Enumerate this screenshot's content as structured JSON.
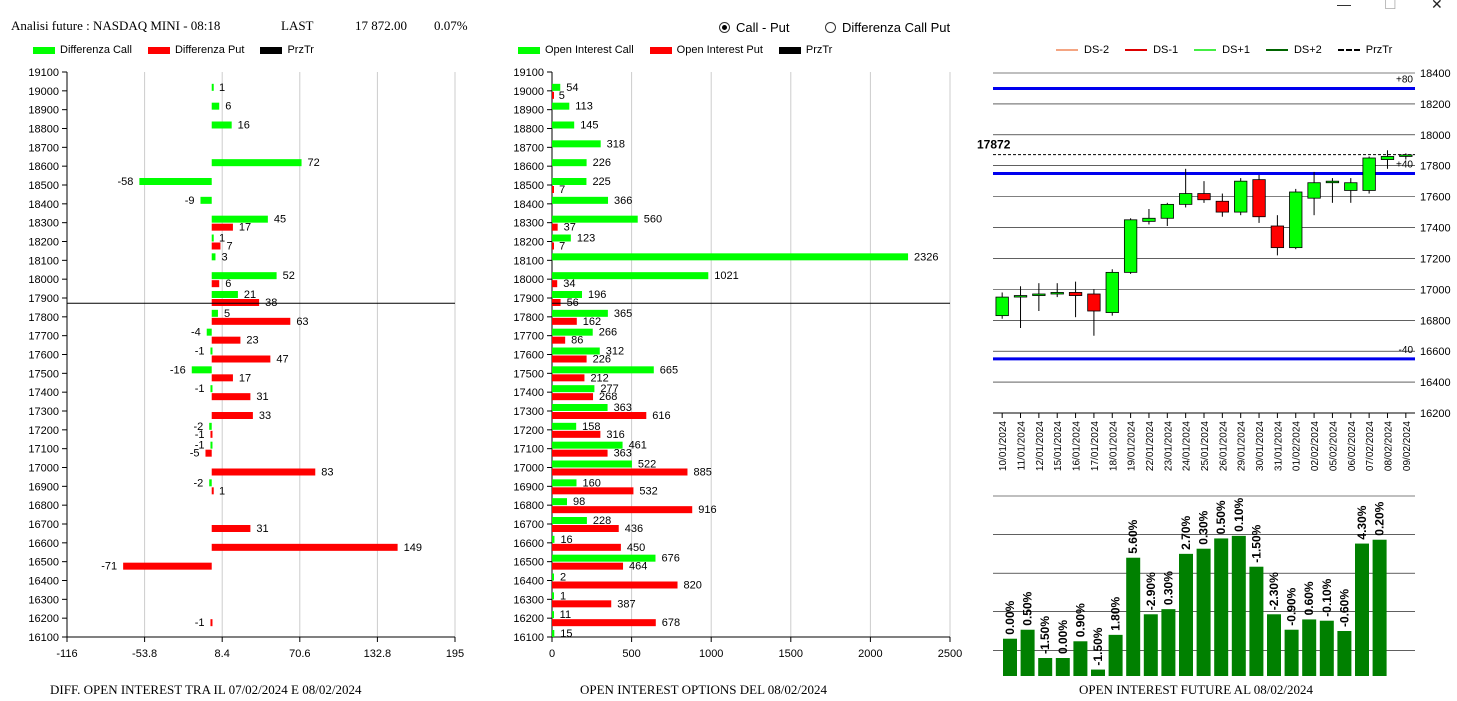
{
  "header": {
    "title": "Analisi future : NASDAQ MINI - 08:18",
    "last_label": "LAST",
    "last_value": "17 872.00",
    "change": "0.07%"
  },
  "radio": {
    "call_put": "Call - Put",
    "diff_call_put": "Differenza Call Put",
    "selected": "call_put"
  },
  "window_controls": [
    "—",
    "☐",
    "✕"
  ],
  "colors": {
    "green": "#00ff00",
    "red": "#ff0000",
    "black": "#000000",
    "blue": "#0000ee",
    "dark_green": "#008000"
  },
  "chart1": {
    "legend": [
      "Differenza Call",
      "Differenza Put",
      "PrzTr"
    ],
    "footer": "DIFF. OPEN INTEREST TRA IL 07/02/2024 E 08/02/2024"
  },
  "chart2": {
    "legend": [
      "Open Interest Call",
      "Open Interest Put",
      "PrzTr"
    ],
    "footer": "OPEN INTEREST OPTIONS DEL 08/02/2024"
  },
  "chart3": {
    "legend": [
      "DS-2",
      "DS-1",
      "DS+1",
      "DS+2",
      "PrzTr"
    ],
    "footer": "OPEN INTEREST FUTURE AL 08/02/2024"
  },
  "chart_data": [
    {
      "type": "bar",
      "orientation": "horizontal",
      "strikes": [
        19100,
        19000,
        18900,
        18800,
        18700,
        18600,
        18500,
        18400,
        18300,
        18200,
        18100,
        18000,
        17900,
        17800,
        17700,
        17600,
        17500,
        17400,
        17300,
        17200,
        17100,
        17000,
        16900,
        16800,
        16700,
        16600,
        16500,
        16400,
        16300,
        16200,
        16100
      ],
      "series": [
        {
          "name": "Differenza Call",
          "values": [
            null,
            1,
            6,
            16,
            null,
            72,
            -58,
            -9,
            45,
            1,
            3,
            52,
            21,
            5,
            -4,
            -1,
            -16,
            -1,
            null,
            -2,
            -1,
            null,
            -2,
            null,
            null,
            null,
            null,
            null,
            null,
            null,
            null
          ]
        },
        {
          "name": "Differenza Put",
          "values": [
            null,
            null,
            null,
            null,
            null,
            null,
            null,
            null,
            17,
            7,
            null,
            6,
            38,
            63,
            23,
            47,
            17,
            31,
            33,
            -1,
            -5,
            83,
            1,
            null,
            31,
            149,
            -71,
            null,
            null,
            -1,
            null
          ]
        }
      ],
      "price_line": 17872,
      "x_ticks": [
        "-116",
        "-53.8",
        "8.4",
        "70.6",
        "132.8",
        "195"
      ],
      "xlim": [
        -116,
        195
      ]
    },
    {
      "type": "bar",
      "orientation": "horizontal",
      "strikes": [
        19100,
        19000,
        18900,
        18800,
        18700,
        18600,
        18500,
        18400,
        18300,
        18200,
        18100,
        18000,
        17900,
        17800,
        17700,
        17600,
        17500,
        17400,
        17300,
        17200,
        17100,
        17000,
        16900,
        16800,
        16700,
        16600,
        16500,
        16400,
        16300,
        16200,
        16100
      ],
      "series": [
        {
          "name": "Open Interest Call",
          "values": [
            null,
            54,
            113,
            145,
            318,
            226,
            225,
            366,
            560,
            123,
            2326,
            1021,
            196,
            365,
            266,
            312,
            665,
            277,
            363,
            158,
            461,
            522,
            160,
            98,
            228,
            16,
            676,
            null,
            null,
            11,
            15
          ]
        },
        {
          "name": "Open Interest Put",
          "values": [
            null,
            5,
            null,
            null,
            null,
            null,
            7,
            null,
            37,
            7,
            null,
            34,
            56,
            162,
            86,
            226,
            212,
            268,
            616,
            316,
            363,
            885,
            532,
            916,
            436,
            450,
            464,
            820,
            387,
            678,
            null
          ]
        }
      ],
      "extra_labels": [
        {
          "strike": 16400,
          "series": "Open Interest Call",
          "text": "2"
        },
        {
          "strike": 16300,
          "series": "Open Interest Call",
          "text": "1"
        }
      ],
      "price_line": 17872,
      "x_ticks": [
        "0",
        "500",
        "1000",
        "1500",
        "2000",
        "2500"
      ],
      "xlim": [
        0,
        2600
      ]
    },
    {
      "type": "candlestick",
      "dates": [
        "10/01/2024",
        "11/01/2024",
        "12/01/2024",
        "15/01/2024",
        "16/01/2024",
        "17/01/2024",
        "18/01/2024",
        "19/01/2024",
        "22/01/2024",
        "23/01/2024",
        "24/01/2024",
        "25/01/2024",
        "26/01/2024",
        "29/01/2024",
        "30/01/2024",
        "31/01/2024",
        "01/02/2024",
        "02/02/2024",
        "05/02/2024",
        "06/02/2024",
        "07/02/2024",
        "08/02/2024",
        "09/02/2024"
      ],
      "ohlc": [
        [
          16830,
          16980,
          16810,
          16950
        ],
        [
          16960,
          17020,
          16750,
          16960
        ],
        [
          16960,
          17040,
          16860,
          16970
        ],
        [
          16970,
          17040,
          16950,
          16980
        ],
        [
          16980,
          17050,
          16820,
          16960
        ],
        [
          16970,
          17000,
          16700,
          16860
        ],
        [
          16850,
          17130,
          16830,
          17110
        ],
        [
          17110,
          17460,
          17100,
          17450
        ],
        [
          17440,
          17520,
          17420,
          17460
        ],
        [
          17460,
          17560,
          17410,
          17550
        ],
        [
          17550,
          17780,
          17530,
          17620
        ],
        [
          17620,
          17700,
          17560,
          17580
        ],
        [
          17570,
          17620,
          17470,
          17500
        ],
        [
          17500,
          17720,
          17480,
          17700
        ],
        [
          17710,
          17740,
          17430,
          17470
        ],
        [
          17410,
          17480,
          17220,
          17270
        ],
        [
          17270,
          17650,
          17260,
          17630
        ],
        [
          17590,
          17760,
          17480,
          17690
        ],
        [
          17690,
          17720,
          17560,
          17700
        ],
        [
          17640,
          17720,
          17560,
          17690
        ],
        [
          17640,
          17860,
          17620,
          17850
        ],
        [
          17840,
          17900,
          17780,
          17860
        ],
        [
          17860,
          17880,
          17840,
          17870
        ]
      ],
      "hlines": [
        {
          "value": 18300,
          "label": "+80",
          "color": "#0000ee"
        },
        {
          "value": 17750,
          "label": "+40",
          "color": "#0000ee"
        },
        {
          "value": 16550,
          "label": "-40",
          "color": "#0000ee"
        }
      ],
      "price_line": 17872,
      "price_label": "17872",
      "y_ticks": [
        "18400",
        "18200",
        "18000",
        "17800",
        "17600",
        "17400",
        "17200",
        "17000",
        "16800",
        "16600",
        "16400",
        "16200"
      ],
      "ylim": [
        16200,
        18400
      ]
    },
    {
      "type": "bar",
      "categories": [
        "10/01/2024",
        "11/01/2024",
        "12/01/2024",
        "15/01/2024",
        "16/01/2024",
        "17/01/2024",
        "18/01/2024",
        "19/01/2024",
        "22/01/2024",
        "23/01/2024",
        "24/01/2024",
        "25/01/2024",
        "26/01/2024",
        "29/01/2024",
        "30/01/2024",
        "31/01/2024",
        "01/02/2024",
        "02/02/2024",
        "05/02/2024",
        "06/02/2024",
        "07/02/2024",
        "08/02/2024"
      ],
      "labels": [
        "0.00%",
        "0.50%",
        "-1.50%",
        "0.00%",
        "0.90%",
        "-1.50%",
        "1.80%",
        "5.60%",
        "-2.90%",
        "0.30%",
        "2.70%",
        "0.30%",
        "0.50%",
        "0.10%",
        "-1.50%",
        "-2.30%",
        "-0.90%",
        "0.60%",
        "-0.10%",
        "-0.60%",
        "4.30%",
        "0.20%"
      ],
      "values": [
        29,
        36,
        14,
        14,
        27,
        5,
        32,
        92,
        48,
        52,
        95,
        99,
        107,
        109,
        85,
        48,
        36,
        44,
        43,
        35,
        103,
        106
      ],
      "ylim": [
        0,
        140
      ]
    }
  ]
}
